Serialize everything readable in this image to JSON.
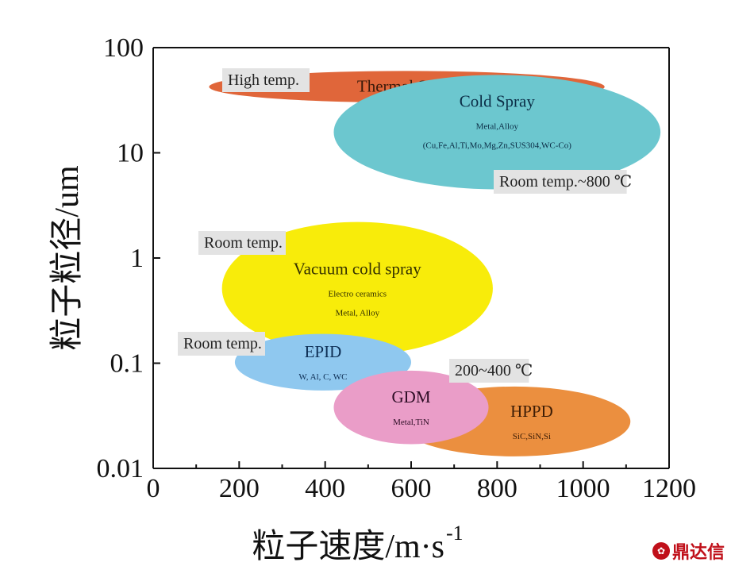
{
  "chart_data": {
    "type": "scatter",
    "x_ticks": [
      "0",
      "200",
      "400",
      "600",
      "800",
      "1000",
      "1200"
    ],
    "y_ticks": [
      "0.01",
      "0.1",
      "1",
      "10",
      "100"
    ],
    "xlabel_main": "粒子速度/m·s",
    "xlabel_sup": "-1",
    "ylabel": "粒子粒径/um",
    "xlim": [
      0,
      1200
    ],
    "ylim": [
      0.01,
      100
    ],
    "y_scale": "log",
    "grid": false,
    "regions": [
      {
        "name": "Thermal Spray",
        "lines": [],
        "x_range": [
          130,
          1050
        ],
        "y_range": [
          30,
          60
        ],
        "color": "#e0663a",
        "text_color": "#3a1a0a"
      },
      {
        "name": "Cold Spray",
        "lines": [
          "Metal,Alloy",
          "(Cu,Fe,Al,Ti,Mo,Mg,Zn,SUS304,WC-Co)"
        ],
        "x_range": [
          420,
          1180
        ],
        "y_range": [
          4.5,
          55
        ],
        "color": "#6cc7cf",
        "text_color": "#0b2d46"
      },
      {
        "name": "Vacuum cold spray",
        "lines": [
          "Electro ceramics",
          "Metal, Alloy"
        ],
        "x_range": [
          160,
          790
        ],
        "y_range": [
          0.12,
          2.2
        ],
        "color": "#f8ec0a",
        "text_color": "#333000"
      },
      {
        "name": "EPID",
        "lines": [
          "W, Al, C, WC"
        ],
        "x_range": [
          190,
          600
        ],
        "y_range": [
          0.055,
          0.19
        ],
        "color": "#8fc8ef",
        "text_color": "#0e2f55"
      },
      {
        "name": "HPPD",
        "lines": [
          "SiC,SiN,Si"
        ],
        "x_range": [
          570,
          1110
        ],
        "y_range": [
          0.013,
          0.06
        ],
        "color": "#eb8f3f",
        "text_color": "#3d1d06"
      },
      {
        "name": "GDM",
        "lines": [
          "Metal,TiN"
        ],
        "x_range": [
          420,
          780
        ],
        "y_range": [
          0.017,
          0.085
        ],
        "color": "#ea9dc8",
        "text_color": "#2c0c24"
      }
    ],
    "annotations": [
      "High temp.",
      "Room temp.~800 ℃",
      "Room temp.",
      "Room temp.",
      "200~400 ℃"
    ]
  },
  "watermark": "鼎达信",
  "watermark_icon": "fan-logo-icon"
}
